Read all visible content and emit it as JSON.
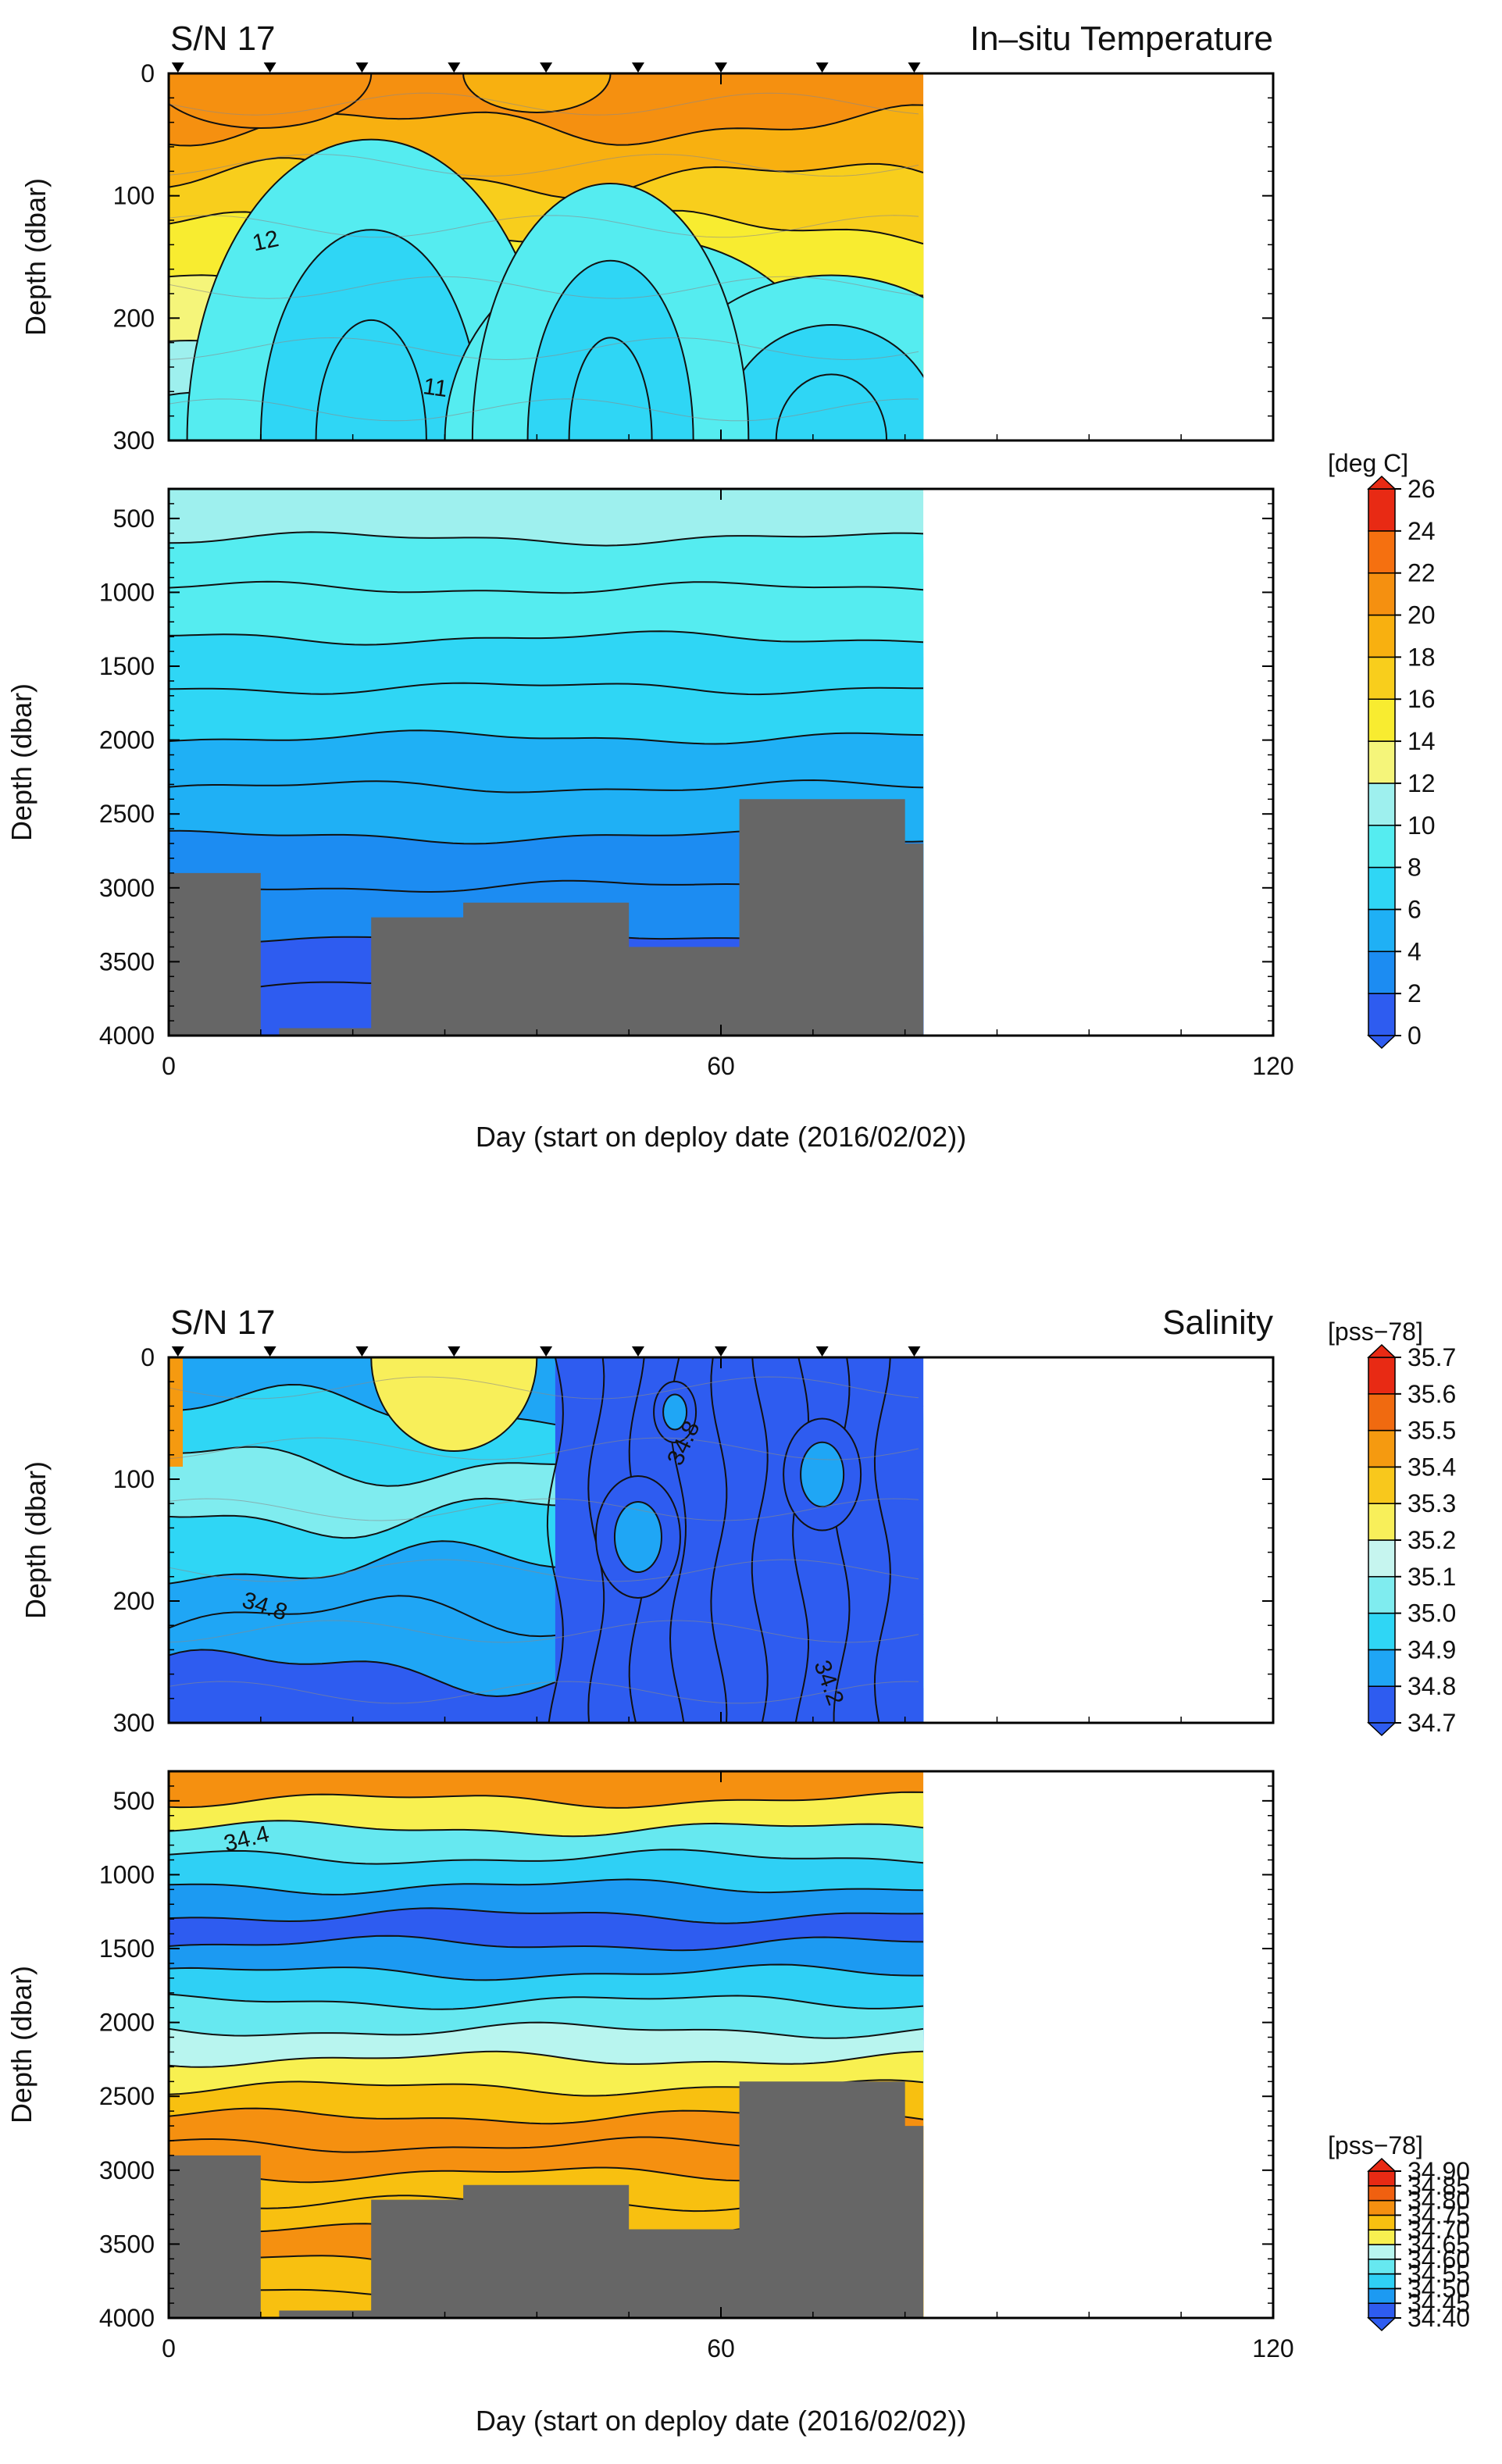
{
  "colors": {
    "land": "#666666",
    "temperature_scale": [
      "#2e5cf0",
      "#1c8cf2",
      "#1fb0f5",
      "#2fd6f5",
      "#55ecf0",
      "#9ef0ee",
      "#f5f57a",
      "#f8ec30",
      "#f8ce1c",
      "#f8b010",
      "#f59010",
      "#f57010",
      "#e82a14"
    ],
    "salinity_upper_scale": [
      "#2e5cf0",
      "#1fa6f5",
      "#2fd6f5",
      "#7fecef",
      "#c6f5ef",
      "#f8ef5a",
      "#f8c81c",
      "#f59a10",
      "#f06a10",
      "#e82a14"
    ],
    "salinity_lower_scale": [
      "#2e5cf0",
      "#1c9af2",
      "#2fd0f5",
      "#66e8f0",
      "#b8f5ef",
      "#f8f050",
      "#f8c010",
      "#f59010",
      "#f06010",
      "#e82a14"
    ]
  },
  "chart_data": [
    {
      "type": "heatmap",
      "title_left": "S/N 17",
      "title_right": "In–situ Temperature",
      "xlabel": "Day (start on deploy date (2016/02/02))",
      "xlim": [
        0,
        120
      ],
      "x_ticks": [
        "0",
        "60",
        "120"
      ],
      "profile_markers_day": [
        1,
        11,
        21,
        31,
        41,
        51,
        60,
        71,
        81
      ],
      "data_end_day": 82,
      "upper_panel": {
        "ylabel": "Depth (dbar)",
        "ylim": [
          0,
          300
        ],
        "y_ticks": [
          "0",
          "100",
          "200",
          "300"
        ],
        "contour_labels": [
          "12",
          "11"
        ]
      },
      "lower_panel": {
        "ylabel": "Depth (dbar)",
        "ylim": [
          300,
          4000
        ],
        "y_ticks": [
          "500",
          "1000",
          "1500",
          "2000",
          "2500",
          "3000",
          "3500",
          "4000"
        ],
        "bottom_depth": [
          [
            0,
            2900
          ],
          [
            10,
            2900
          ],
          [
            10,
            4000
          ],
          [
            12,
            4000
          ],
          [
            12,
            3950
          ],
          [
            22,
            3950
          ],
          [
            22,
            3200
          ],
          [
            32,
            3200
          ],
          [
            32,
            3100
          ],
          [
            50,
            3100
          ],
          [
            50,
            3400
          ],
          [
            62,
            3400
          ],
          [
            62,
            2400
          ],
          [
            80,
            2400
          ],
          [
            80,
            2700
          ],
          [
            82,
            2700
          ]
        ]
      },
      "colorbar": {
        "unit": "[deg C]",
        "ticks": [
          "26",
          "24",
          "22",
          "20",
          "18",
          "16",
          "14",
          "12",
          "10",
          "8",
          "6",
          "4",
          "2",
          "0"
        ]
      }
    },
    {
      "type": "heatmap",
      "title_left": "S/N 17",
      "title_right": "Salinity",
      "xlabel": "Day (start on deploy date (2016/02/02))",
      "xlim": [
        0,
        120
      ],
      "x_ticks": [
        "0",
        "60",
        "120"
      ],
      "profile_markers_day": [
        1,
        11,
        21,
        31,
        41,
        51,
        60,
        71,
        81
      ],
      "data_end_day": 82,
      "upper_panel": {
        "ylabel": "Depth (dbar)",
        "ylim": [
          0,
          300
        ],
        "y_ticks": [
          "0",
          "100",
          "200",
          "300"
        ],
        "contour_labels": [
          "34.8",
          "34.8",
          "34.2"
        ]
      },
      "lower_panel": {
        "ylabel": "Depth (dbar)",
        "ylim": [
          300,
          4000
        ],
        "y_ticks": [
          "500",
          "1000",
          "1500",
          "2000",
          "2500",
          "3000",
          "3500",
          "4000"
        ],
        "contour_labels": [
          "34.4"
        ],
        "bottom_depth": [
          [
            0,
            2900
          ],
          [
            10,
            2900
          ],
          [
            10,
            4000
          ],
          [
            12,
            4000
          ],
          [
            12,
            3950
          ],
          [
            22,
            3950
          ],
          [
            22,
            3200
          ],
          [
            32,
            3200
          ],
          [
            32,
            3100
          ],
          [
            50,
            3100
          ],
          [
            50,
            3400
          ],
          [
            62,
            3400
          ],
          [
            62,
            2400
          ],
          [
            80,
            2400
          ],
          [
            80,
            2700
          ],
          [
            82,
            2700
          ]
        ]
      },
      "colorbar_upper": {
        "unit": "[pss−78]",
        "ticks": [
          "35.7",
          "35.6",
          "35.5",
          "35.4",
          "35.3",
          "35.2",
          "35.1",
          "35.0",
          "34.9",
          "34.8",
          "34.7"
        ]
      },
      "colorbar_lower": {
        "unit": "[pss−78]",
        "ticks": [
          "34.90",
          "34.85",
          "34.80",
          "34.75",
          "34.70",
          "34.65",
          "34.60",
          "34.55",
          "34.50",
          "34.45",
          "34.40"
        ]
      }
    }
  ]
}
